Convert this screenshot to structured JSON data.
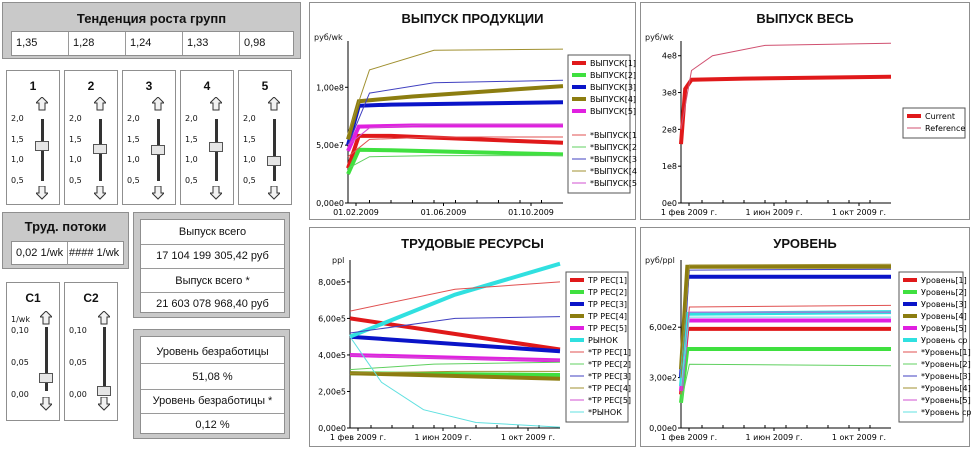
{
  "growth": {
    "title": "Тенденция роста групп",
    "values": [
      "1,35",
      "1,28",
      "1,24",
      "1,33",
      "0,98"
    ]
  },
  "sliders": [
    {
      "label": "1",
      "ticks": [
        "2,0",
        "1,5",
        "1,0",
        "0,5"
      ],
      "value": 1.35
    },
    {
      "label": "2",
      "ticks": [
        "2,0",
        "1,5",
        "1,0",
        "0,5"
      ],
      "value": 1.28
    },
    {
      "label": "3",
      "ticks": [
        "2,0",
        "1,5",
        "1,0",
        "0,5"
      ],
      "value": 1.24
    },
    {
      "label": "4",
      "ticks": [
        "2,0",
        "1,5",
        "1,0",
        "0,5"
      ],
      "value": 1.33
    },
    {
      "label": "5",
      "ticks": [
        "2,0",
        "1,5",
        "1,0",
        "0,5"
      ],
      "value": 0.98
    }
  ],
  "labor_flows": {
    "title": "Труд. потоки",
    "value1": "0,02 1/wk",
    "value2": "#### 1/wk"
  },
  "c_sliders": [
    {
      "label": "C1",
      "unit": "1/wk",
      "ticks": [
        "0,10",
        "0,05",
        "0,00"
      ],
      "value": 0.02
    },
    {
      "label": "C2",
      "unit": "",
      "ticks": [
        "0,10",
        "0,05",
        "0,00"
      ],
      "value": 0.0
    }
  ],
  "output_total": {
    "label1": "Выпуск всего",
    "value1": "17 104 199 305,42 руб",
    "label2": "Выпуск всего  *",
    "value2": "21 603 078 968,40 руб"
  },
  "unemployment": {
    "label1": "Уровень безработицы",
    "value1": "51,08 %",
    "label2": "Уровень безработицы  *",
    "value2": "0,12 %"
  },
  "chart_data": [
    {
      "type": "line",
      "title": "ВЫПУСК ПРОДУКЦИИ",
      "ylabel": "руб/wk",
      "yticks": [
        "0,00e0",
        "5,00e7",
        "1,00e8"
      ],
      "xticks": [
        "01.02.2009",
        "01.06.2009",
        "01.10.2009"
      ],
      "ylim": [
        0,
        140000000
      ],
      "series": [
        {
          "name": "ВЫПУСК[1]",
          "color": "#e0191a",
          "width": 4,
          "points": [
            [
              0,
              30000000
            ],
            [
              0.05,
              58000000
            ],
            [
              0.2,
              58000000
            ],
            [
              1,
              52000000
            ]
          ]
        },
        {
          "name": "ВЫПУСК[2]",
          "color": "#3fe03f",
          "width": 4,
          "points": [
            [
              0,
              25000000
            ],
            [
              0.05,
              46000000
            ],
            [
              0.2,
              45500000
            ],
            [
              1,
              42000000
            ]
          ]
        },
        {
          "name": "ВЫПУСК[3]",
          "color": "#0a14c8",
          "width": 4,
          "points": [
            [
              0,
              50000000
            ],
            [
              0.05,
              84000000
            ],
            [
              0.2,
              85000000
            ],
            [
              1,
              87000000
            ]
          ]
        },
        {
          "name": "ВЫПУСК[4]",
          "color": "#8c7d10",
          "width": 4,
          "points": [
            [
              0,
              55000000
            ],
            [
              0.05,
              88000000
            ],
            [
              0.3,
              92000000
            ],
            [
              1,
              101000000
            ]
          ]
        },
        {
          "name": "ВЫПУСК[5]",
          "color": "#e020e0",
          "width": 4,
          "points": [
            [
              0,
              45000000
            ],
            [
              0.05,
              66000000
            ],
            [
              0.3,
              67000000
            ],
            [
              1,
              67000000
            ]
          ]
        },
        {
          "name": "",
          "color": "#ffffff",
          "width": 1,
          "points": []
        },
        {
          "name": "*ВЫПУСК[1]",
          "color": "#e05050",
          "width": 1,
          "points": [
            [
              0,
              40000000
            ],
            [
              0.1,
              55000000
            ],
            [
              0.4,
              57000000
            ],
            [
              1,
              57000000
            ]
          ]
        },
        {
          "name": "*ВЫПУСК[2]",
          "color": "#60d060",
          "width": 1,
          "points": [
            [
              0,
              30000000
            ],
            [
              0.1,
              40000000
            ],
            [
              0.4,
              41000000
            ],
            [
              1,
              41000000
            ]
          ]
        },
        {
          "name": "*ВЫПУСК[3]",
          "color": "#4040c0",
          "width": 1,
          "points": [
            [
              0,
              50000000
            ],
            [
              0.1,
              95000000
            ],
            [
              0.4,
              104000000
            ],
            [
              1,
              106000000
            ]
          ]
        },
        {
          "name": "*ВЫПУСК[4]",
          "color": "#a09030",
          "width": 1,
          "points": [
            [
              0,
              60000000
            ],
            [
              0.1,
              115000000
            ],
            [
              0.4,
              132000000
            ],
            [
              1,
              133000000
            ]
          ]
        },
        {
          "name": "*ВЫПУСК[5]",
          "color": "#d050d0",
          "width": 1,
          "points": [
            [
              0,
              50000000
            ],
            [
              0.1,
              65000000
            ],
            [
              0.4,
              68000000
            ],
            [
              1,
              68000000
            ]
          ]
        }
      ]
    },
    {
      "type": "line",
      "title": "ВЫПУСК ВЕСЬ",
      "ylabel": "руб/wk",
      "yticks": [
        "0e0",
        "1e8",
        "2e8",
        "3e8",
        "4e8"
      ],
      "xticks": [
        "1 фев 2009 г.",
        "1 июн 2009 г.",
        "1 окт 2009 г."
      ],
      "ylim": [
        0,
        440000000
      ],
      "series": [
        {
          "name": "Current",
          "color": "#e0191a",
          "width": 4,
          "points": [
            [
              0,
              160000000
            ],
            [
              0.02,
              310000000
            ],
            [
              0.05,
              335000000
            ],
            [
              0.3,
              338000000
            ],
            [
              1,
              343000000
            ]
          ]
        },
        {
          "name": "Reference",
          "color": "#d05070",
          "width": 1,
          "points": [
            [
              0,
              200000000
            ],
            [
              0.05,
              360000000
            ],
            [
              0.15,
              400000000
            ],
            [
              0.4,
              428000000
            ],
            [
              1,
              434000000
            ]
          ]
        }
      ]
    },
    {
      "type": "line",
      "title": "ТРУДОВЫЕ РЕСУРСЫ",
      "ylabel": "ppl",
      "yticks": [
        "0,00e0",
        "2,00e5",
        "4,00e5",
        "6,00e5",
        "8,00e5"
      ],
      "xticks": [
        "1 фев 2009 г.",
        "1 июн 2009 г.",
        "1 окт 2009 г."
      ],
      "ylim": [
        0,
        920000
      ],
      "series": [
        {
          "name": "ТР РЕС[1]",
          "color": "#e0191a",
          "width": 4,
          "points": [
            [
              0,
              600000
            ],
            [
              1,
              430000
            ]
          ]
        },
        {
          "name": "ТР РЕС[2]",
          "color": "#3fe03f",
          "width": 4,
          "points": [
            [
              0,
              300000
            ],
            [
              1,
              290000
            ]
          ]
        },
        {
          "name": "ТР РЕС[3]",
          "color": "#0a14c8",
          "width": 4,
          "points": [
            [
              0,
              500000
            ],
            [
              1,
              420000
            ]
          ]
        },
        {
          "name": "ТР РЕС[4]",
          "color": "#8c7d10",
          "width": 4,
          "points": [
            [
              0,
              300000
            ],
            [
              1,
              270000
            ]
          ]
        },
        {
          "name": "ТР РЕС[5]",
          "color": "#e020e0",
          "width": 4,
          "points": [
            [
              0,
              400000
            ],
            [
              1,
              370000
            ]
          ]
        },
        {
          "name": "РЫНОК",
          "color": "#30e0e0",
          "width": 4,
          "points": [
            [
              0,
              500000
            ],
            [
              0.5,
              730000
            ],
            [
              1,
              900000
            ]
          ]
        },
        {
          "name": "*ТР РЕС[1]",
          "color": "#e05050",
          "width": 1,
          "points": [
            [
              0,
              640000
            ],
            [
              0.5,
              760000
            ],
            [
              1,
              800000
            ]
          ]
        },
        {
          "name": "*ТР РЕС[2]",
          "color": "#60d060",
          "width": 1,
          "points": [
            [
              0,
              320000
            ],
            [
              0.4,
              350000
            ],
            [
              1,
              360000
            ]
          ]
        },
        {
          "name": "*ТР РЕС[3]",
          "color": "#4040c0",
          "width": 1,
          "points": [
            [
              0,
              520000
            ],
            [
              0.5,
              600000
            ],
            [
              1,
              610000
            ]
          ]
        },
        {
          "name": "*ТР РЕС[4]",
          "color": "#a09030",
          "width": 1,
          "points": [
            [
              0,
              300000
            ],
            [
              0.5,
              310000
            ],
            [
              1,
              310000
            ]
          ]
        },
        {
          "name": "*ТР РЕС[5]",
          "color": "#d050d0",
          "width": 1,
          "points": [
            [
              0,
              400000
            ],
            [
              0.5,
              380000
            ],
            [
              1,
              370000
            ]
          ]
        },
        {
          "name": "*РЫНОК",
          "color": "#60e0e0",
          "width": 1,
          "points": [
            [
              0,
              500000
            ],
            [
              0.15,
              250000
            ],
            [
              0.35,
              100000
            ],
            [
              0.6,
              30000
            ],
            [
              1,
              5000
            ]
          ]
        }
      ]
    },
    {
      "type": "line",
      "title": "УРОВЕНЬ",
      "ylabel": "руб/ppl",
      "yticks": [
        "0,00e0",
        "3,00e2",
        "6,00e2"
      ],
      "xticks": [
        "1 фев 2009 г.",
        "1 июн 2009 г.",
        "1 окт 2009 г."
      ],
      "ylim": [
        0,
        1000
      ],
      "series": [
        {
          "name": "Уровень[1]",
          "color": "#e0191a",
          "width": 4,
          "points": [
            [
              0,
              200
            ],
            [
              0.03,
              590
            ],
            [
              1,
              590
            ]
          ]
        },
        {
          "name": "Уровень[2]",
          "color": "#3fe03f",
          "width": 4,
          "points": [
            [
              0,
              150
            ],
            [
              0.03,
              470
            ],
            [
              1,
              470
            ]
          ]
        },
        {
          "name": "Уровень[3]",
          "color": "#0a14c8",
          "width": 4,
          "points": [
            [
              0,
              300
            ],
            [
              0.03,
              900
            ],
            [
              1,
              900
            ]
          ]
        },
        {
          "name": "Уровень[4]",
          "color": "#8c7d10",
          "width": 4,
          "points": [
            [
              0,
              350
            ],
            [
              0.03,
              960
            ],
            [
              1,
              960
            ]
          ]
        },
        {
          "name": "Уровень[5]",
          "color": "#e020e0",
          "width": 4,
          "points": [
            [
              0,
              220
            ],
            [
              0.03,
              640
            ],
            [
              1,
              640
            ]
          ]
        },
        {
          "name": "Уровень ср",
          "color": "#30e0e0",
          "width": 4,
          "points": [
            [
              0,
              250
            ],
            [
              0.03,
              680
            ],
            [
              1,
              690
            ]
          ]
        },
        {
          "name": "*Уровень[1]",
          "color": "#e05050",
          "width": 1,
          "points": [
            [
              0,
              200
            ],
            [
              0.04,
              720
            ],
            [
              1,
              730
            ]
          ]
        },
        {
          "name": "*Уровень[2]",
          "color": "#60d060",
          "width": 1,
          "points": [
            [
              0,
              150
            ],
            [
              0.04,
              380
            ],
            [
              1,
              370
            ]
          ]
        },
        {
          "name": "*Уровень[3]",
          "color": "#4040c0",
          "width": 1,
          "points": [
            [
              0,
              300
            ],
            [
              0.04,
              940
            ],
            [
              1,
              945
            ]
          ]
        },
        {
          "name": "*Уровень[4]",
          "color": "#a09030",
          "width": 1,
          "points": [
            [
              0,
              300
            ],
            [
              0.04,
              970
            ],
            [
              1,
              975
            ]
          ]
        },
        {
          "name": "*Уровень[5]",
          "color": "#d050d0",
          "width": 1,
          "points": [
            [
              0,
              220
            ],
            [
              0.04,
              690
            ],
            [
              1,
              690
            ]
          ]
        },
        {
          "name": "*Уровень ср",
          "color": "#60e0e0",
          "width": 1,
          "points": [
            [
              0,
              250
            ],
            [
              0.04,
              660
            ],
            [
              1,
              660
            ]
          ]
        }
      ]
    }
  ]
}
